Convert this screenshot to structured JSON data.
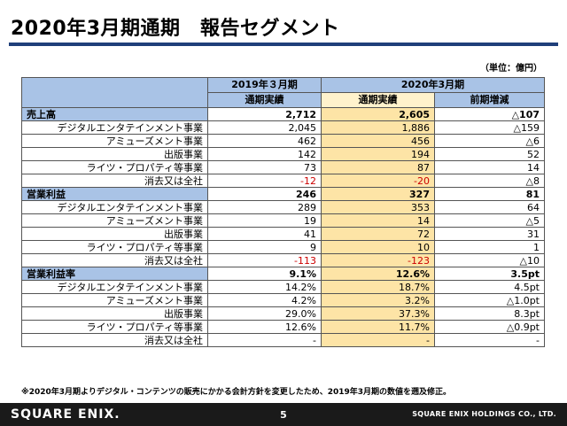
{
  "title": "2020年3月期通期　報告セグメント",
  "unit": "（単位：億円）",
  "header": {
    "col_2019": "2019年３月期",
    "col_2020": "2020年3月期",
    "actual_2019": "通期実績",
    "actual_2020": "通期実績",
    "yoy": "前期増減"
  },
  "sections": [
    {
      "label": "売上高",
      "total": {
        "v2019": "2,712",
        "v2020": "2,605",
        "yoy": "△107"
      },
      "rows": [
        {
          "label": "デジタルエンタテインメント事業",
          "v2019": "2,045",
          "v2020": "1,886",
          "yoy": "△159",
          "neg2019": false,
          "neg2020": false
        },
        {
          "label": "アミューズメント事業",
          "v2019": "462",
          "v2020": "456",
          "yoy": "△6",
          "neg2019": false,
          "neg2020": false
        },
        {
          "label": "出版事業",
          "v2019": "142",
          "v2020": "194",
          "yoy": "52",
          "neg2019": false,
          "neg2020": false
        },
        {
          "label": "ライツ・プロパティ等事業",
          "v2019": "73",
          "v2020": "87",
          "yoy": "14",
          "neg2019": false,
          "neg2020": false
        },
        {
          "label": "消去又は全社",
          "v2019": "-12",
          "v2020": "-20",
          "yoy": "△8",
          "neg2019": true,
          "neg2020": true
        }
      ]
    },
    {
      "label": "営業利益",
      "total": {
        "v2019": "246",
        "v2020": "327",
        "yoy": "81"
      },
      "rows": [
        {
          "label": "デジタルエンタテインメント事業",
          "v2019": "289",
          "v2020": "353",
          "yoy": "64",
          "neg2019": false,
          "neg2020": false
        },
        {
          "label": "アミューズメント事業",
          "v2019": "19",
          "v2020": "14",
          "yoy": "△5",
          "neg2019": false,
          "neg2020": false
        },
        {
          "label": "出版事業",
          "v2019": "41",
          "v2020": "72",
          "yoy": "31",
          "neg2019": false,
          "neg2020": false
        },
        {
          "label": "ライツ・プロパティ等事業",
          "v2019": "9",
          "v2020": "10",
          "yoy": "1",
          "neg2019": false,
          "neg2020": false
        },
        {
          "label": "消去又は全社",
          "v2019": "-113",
          "v2020": "-123",
          "yoy": "△10",
          "neg2019": true,
          "neg2020": true
        }
      ]
    },
    {
      "label": "営業利益率",
      "total": {
        "v2019": "9.1%",
        "v2020": "12.6%",
        "yoy": "3.5pt"
      },
      "rows": [
        {
          "label": "デジタルエンタテインメント事業",
          "v2019": "14.2%",
          "v2020": "18.7%",
          "yoy": "4.5pt",
          "neg2019": false,
          "neg2020": false
        },
        {
          "label": "アミューズメント事業",
          "v2019": "4.2%",
          "v2020": "3.2%",
          "yoy": "△1.0pt",
          "neg2019": false,
          "neg2020": false
        },
        {
          "label": "出版事業",
          "v2019": "29.0%",
          "v2020": "37.3%",
          "yoy": "8.3pt",
          "neg2019": false,
          "neg2020": false
        },
        {
          "label": "ライツ・プロパティ等事業",
          "v2019": "12.6%",
          "v2020": "11.7%",
          "yoy": "△0.9pt",
          "neg2019": false,
          "neg2020": false
        },
        {
          "label": "消去又は全社",
          "v2019": "-",
          "v2020": "-",
          "yoy": "-",
          "neg2019": false,
          "neg2020": false
        }
      ]
    }
  ],
  "note": "※2020年3月期よりデジタル・コンテンツの販売にかかる会計方針を変更したため、2019年3月期の数値を遡及修正。",
  "footer": {
    "logo": "SQUARE ENIX.",
    "page": "5",
    "company": "SQUARE ENIX HOLDINGS CO., LTD."
  }
}
